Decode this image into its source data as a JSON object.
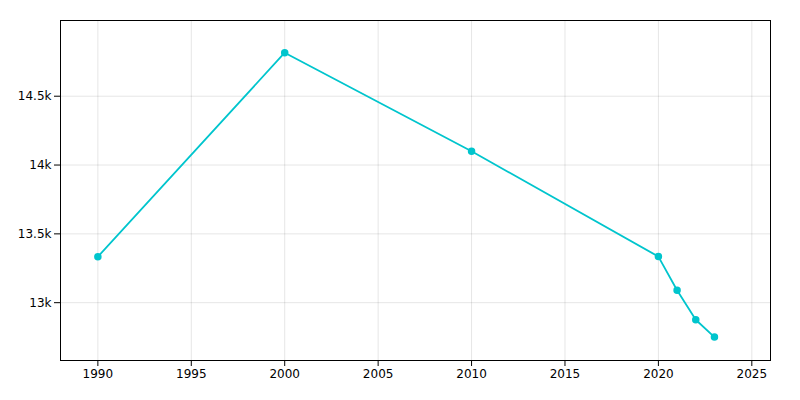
{
  "chart_data": {
    "type": "line",
    "x": [
      1990,
      2000,
      2010,
      2020,
      2021,
      2022,
      2023
    ],
    "values": [
      13334,
      14816,
      14100,
      13335,
      13090,
      12876,
      12750
    ],
    "color": "#00C5CD",
    "marker": "circle",
    "xlim": [
      1988,
      2026
    ],
    "ylim": [
      12580,
      15050
    ],
    "xticks": [
      1990,
      1995,
      2000,
      2005,
      2010,
      2015,
      2020,
      2025
    ],
    "yticks": [
      {
        "value": 13000,
        "label": "13k"
      },
      {
        "value": 13500,
        "label": "13.5k"
      },
      {
        "value": 14000,
        "label": "14k"
      },
      {
        "value": 14500,
        "label": "14.5k"
      }
    ],
    "grid": true
  }
}
